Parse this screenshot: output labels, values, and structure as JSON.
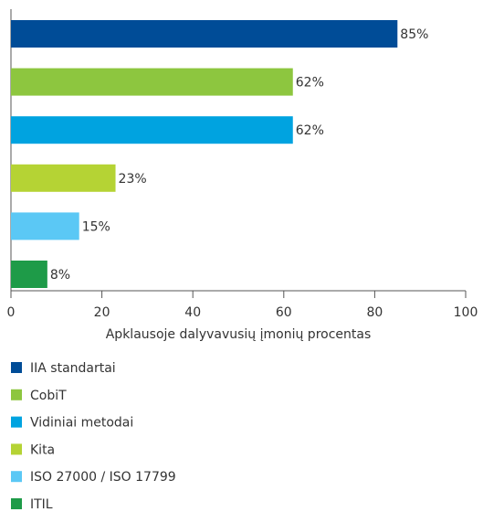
{
  "chart_data": {
    "type": "bar",
    "orientation": "horizontal",
    "categories": [
      "IIA standartai",
      "CobiT",
      "Vidiniai metodai",
      "Kita",
      "ISO 27000 / ISO 17799",
      "ITIL"
    ],
    "values": [
      85,
      62,
      62,
      23,
      15,
      8
    ],
    "value_labels": [
      "85%",
      "62%",
      "62%",
      "23%",
      "15%",
      "8%"
    ],
    "colors": [
      "#004c97",
      "#8dc63f",
      "#00a3e0",
      "#b5d334",
      "#5bc8f5",
      "#1e9b48"
    ],
    "xlabel": "Apklausoje dalyvavusių įmonių procentas",
    "xlim": [
      0,
      100
    ],
    "xticks": [
      0,
      20,
      40,
      60,
      80,
      100
    ],
    "legend": "bottom"
  }
}
